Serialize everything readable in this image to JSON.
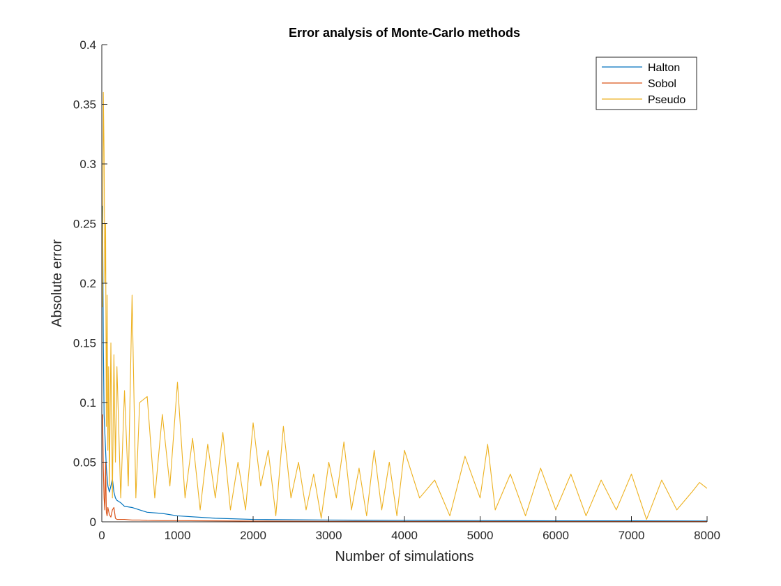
{
  "chart_data": {
    "type": "line",
    "title": "Error analysis of Monte-Carlo methods",
    "xlabel": "Number of simulations",
    "ylabel": "Absolute error",
    "xlim": [
      0,
      8000
    ],
    "ylim": [
      0,
      0.4
    ],
    "xticks": [
      0,
      1000,
      2000,
      3000,
      4000,
      5000,
      6000,
      7000,
      8000
    ],
    "xtick_labels": [
      "0",
      "1000",
      "2000",
      "3000",
      "4000",
      "5000",
      "6000",
      "7000",
      "8000"
    ],
    "yticks": [
      0,
      0.05,
      0.1,
      0.15,
      0.2,
      0.25,
      0.3,
      0.35,
      0.4
    ],
    "ytick_labels": [
      "0",
      "0.05",
      "0.1",
      "0.15",
      "0.2",
      "0.25",
      "0.3",
      "0.35",
      "0.4"
    ],
    "grid": false,
    "legend_position": "top-right",
    "series": [
      {
        "name": "Halton",
        "color": "#0072BD",
        "x": [
          10,
          20,
          30,
          40,
          50,
          60,
          70,
          80,
          100,
          120,
          140,
          160,
          180,
          200,
          250,
          300,
          400,
          500,
          600,
          800,
          1000,
          1500,
          2000,
          3000,
          4000,
          5000,
          6000,
          7000,
          8000
        ],
        "values": [
          0.265,
          0.15,
          0.09,
          0.075,
          0.06,
          0.045,
          0.038,
          0.03,
          0.025,
          0.03,
          0.036,
          0.025,
          0.02,
          0.018,
          0.016,
          0.013,
          0.012,
          0.01,
          0.008,
          0.007,
          0.005,
          0.003,
          0.002,
          0.0015,
          0.0012,
          0.001,
          0.0008,
          0.0008,
          0.0007
        ]
      },
      {
        "name": "Sobol",
        "color": "#D95319",
        "x": [
          10,
          20,
          30,
          40,
          50,
          60,
          70,
          80,
          100,
          120,
          140,
          160,
          180,
          200,
          250,
          300,
          400,
          500,
          600,
          800,
          1000,
          1500,
          2000,
          3000,
          4000,
          5000,
          6000,
          7000,
          8000
        ],
        "values": [
          0.09,
          0.045,
          0.02,
          0.01,
          0.05,
          0.008,
          0.005,
          0.012,
          0.006,
          0.004,
          0.01,
          0.012,
          0.003,
          0.002,
          0.002,
          0.002,
          0.0015,
          0.0015,
          0.0012,
          0.001,
          0.001,
          0.0008,
          0.0006,
          0.0004,
          0.0003,
          0.0003,
          0.0002,
          0.0002,
          0.0002
        ]
      },
      {
        "name": "Pseudo",
        "color": "#EDB120",
        "x": [
          10,
          20,
          30,
          40,
          50,
          60,
          70,
          80,
          90,
          100,
          120,
          140,
          160,
          180,
          200,
          250,
          300,
          350,
          400,
          450,
          500,
          600,
          700,
          800,
          900,
          1000,
          1100,
          1200,
          1300,
          1400,
          1500,
          1600,
          1700,
          1800,
          1900,
          2000,
          2100,
          2200,
          2300,
          2400,
          2500,
          2600,
          2700,
          2800,
          2900,
          3000,
          3100,
          3200,
          3300,
          3400,
          3500,
          3600,
          3700,
          3800,
          3900,
          4000,
          4200,
          4400,
          4600,
          4800,
          5000,
          5100,
          5200,
          5400,
          5600,
          5800,
          6000,
          6200,
          6400,
          6600,
          6800,
          7000,
          7200,
          7400,
          7600,
          7800,
          7900,
          8000
        ],
        "values": [
          0.18,
          0.36,
          0.31,
          0.2,
          0.25,
          0.08,
          0.19,
          0.06,
          0.13,
          0.03,
          0.15,
          0.02,
          0.14,
          0.05,
          0.13,
          0.02,
          0.11,
          0.03,
          0.19,
          0.02,
          0.1,
          0.105,
          0.02,
          0.09,
          0.03,
          0.117,
          0.02,
          0.07,
          0.01,
          0.065,
          0.02,
          0.075,
          0.01,
          0.05,
          0.01,
          0.083,
          0.03,
          0.06,
          0.005,
          0.08,
          0.02,
          0.05,
          0.01,
          0.04,
          0.003,
          0.05,
          0.02,
          0.067,
          0.01,
          0.045,
          0.005,
          0.06,
          0.01,
          0.05,
          0.005,
          0.06,
          0.02,
          0.035,
          0.005,
          0.055,
          0.02,
          0.065,
          0.01,
          0.04,
          0.005,
          0.045,
          0.01,
          0.04,
          0.005,
          0.035,
          0.01,
          0.04,
          0.002,
          0.035,
          0.01,
          0.025,
          0.033,
          0.028
        ]
      }
    ]
  }
}
